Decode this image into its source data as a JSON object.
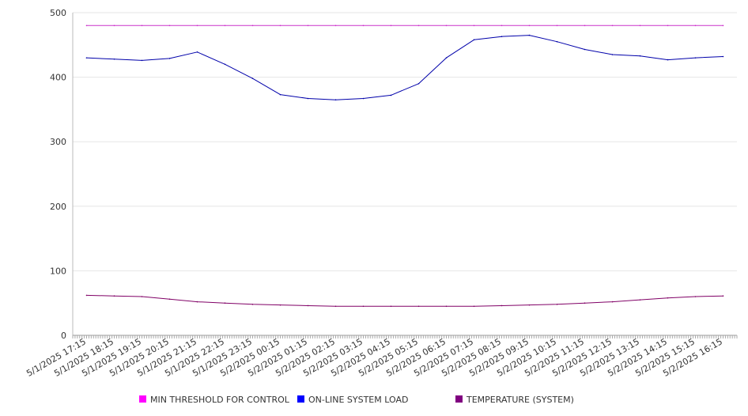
{
  "chart_data": {
    "type": "line",
    "title": "",
    "xlabel": "",
    "ylabel": "",
    "ylim": [
      0,
      500
    ],
    "yticks": [
      0,
      100,
      200,
      300,
      400,
      500
    ],
    "grid": "horizontal",
    "legend_position": "bottom",
    "categories": [
      "5/1/2025 17:15",
      "5/1/2025 18:15",
      "5/1/2025 19:15",
      "5/1/2025 20:15",
      "5/1/2025 21:15",
      "5/1/2025 22:15",
      "5/1/2025 23:15",
      "5/2/2025 00:15",
      "5/2/2025 01:15",
      "5/2/2025 02:15",
      "5/2/2025 03:15",
      "5/2/2025 04:15",
      "5/2/2025 05:15",
      "5/2/2025 06:15",
      "5/2/2025 07:15",
      "5/2/2025 08:15",
      "5/2/2025 09:15",
      "5/2/2025 10:15",
      "5/2/2025 11:15",
      "5/2/2025 12:15",
      "5/2/2025 13:15",
      "5/2/2025 14:15",
      "5/2/2025 15:15",
      "5/2/2025 16:15"
    ],
    "series": [
      {
        "name": "MIN THRESHOLD FOR CONTROL",
        "color": "#cc33cc",
        "legend_color": "#ff00ff",
        "values": [
          480,
          480,
          480,
          480,
          480,
          480,
          480,
          480,
          480,
          480,
          480,
          480,
          480,
          480,
          480,
          480,
          480,
          480,
          480,
          480,
          480,
          480,
          480,
          480
        ]
      },
      {
        "name": "ON-LINE SYSTEM LOAD",
        "color": "#0000aa",
        "legend_color": "#0000ff",
        "values": [
          430,
          428,
          426,
          429,
          439,
          420,
          398,
          373,
          367,
          365,
          367,
          372,
          390,
          430,
          458,
          463,
          465,
          455,
          443,
          435,
          433,
          427,
          430,
          432
        ]
      },
      {
        "name": "TEMPERATURE (SYSTEM)",
        "color": "#800066",
        "legend_color": "#800080",
        "values": [
          62,
          61,
          60,
          56,
          52,
          50,
          48,
          47,
          46,
          45,
          45,
          45,
          45,
          45,
          45,
          46,
          47,
          48,
          50,
          52,
          55,
          58,
          60,
          61
        ]
      }
    ]
  }
}
